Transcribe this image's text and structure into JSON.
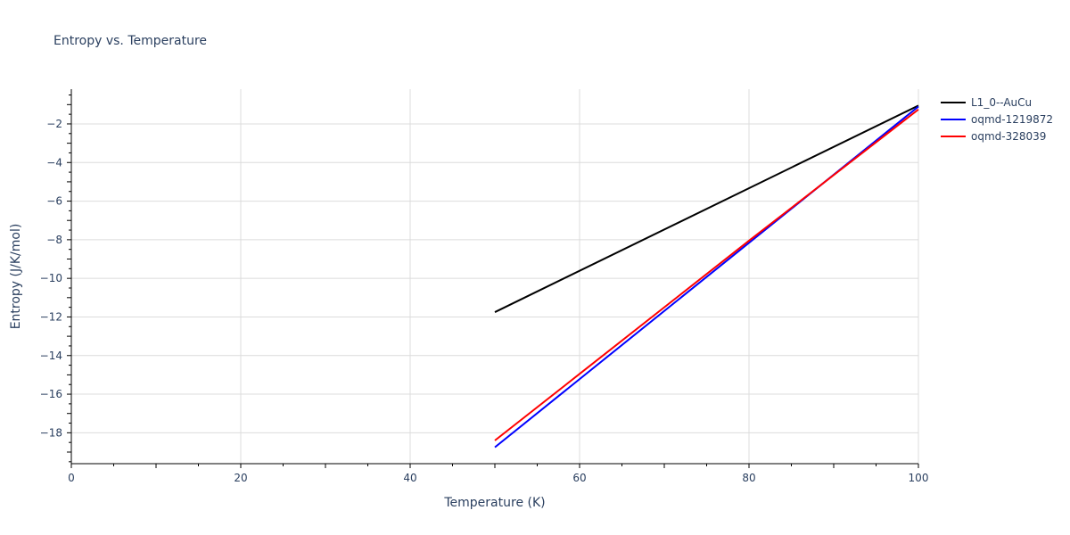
{
  "chart_data": {
    "type": "line",
    "title": "Entropy vs. Temperature",
    "xlabel": "Temperature (K)",
    "ylabel": "Entropy (J/K/mol)",
    "xlim": [
      0,
      100
    ],
    "ylim": [
      -19.6,
      -0.2
    ],
    "x_ticks": [
      0,
      20,
      40,
      60,
      80,
      100
    ],
    "x_tick_labels": [
      "0",
      "20",
      "40",
      "60",
      "80",
      "100"
    ],
    "y_ticks": [
      -2,
      -4,
      -6,
      -8,
      -10,
      -12,
      -14,
      -16,
      -18
    ],
    "y_tick_labels": [
      "−2",
      "−4",
      "−6",
      "−8",
      "−10",
      "−12",
      "−14",
      "−16",
      "−18"
    ],
    "grid": true,
    "legend_position": "top-right",
    "series": [
      {
        "name": "L1_0--AuCu",
        "color": "#000000",
        "x": [
          50,
          100
        ],
        "y": [
          -11.75,
          -1.05
        ]
      },
      {
        "name": "oqmd-1219872",
        "color": "#0000ff",
        "x": [
          50,
          100
        ],
        "y": [
          -18.75,
          -1.1
        ]
      },
      {
        "name": "oqmd-328039",
        "color": "#ff0000",
        "x": [
          50,
          60,
          70,
          80,
          90,
          100
        ],
        "y": [
          -18.4,
          -14.95,
          -11.5,
          -8.05,
          -4.65,
          -1.25
        ]
      }
    ]
  }
}
